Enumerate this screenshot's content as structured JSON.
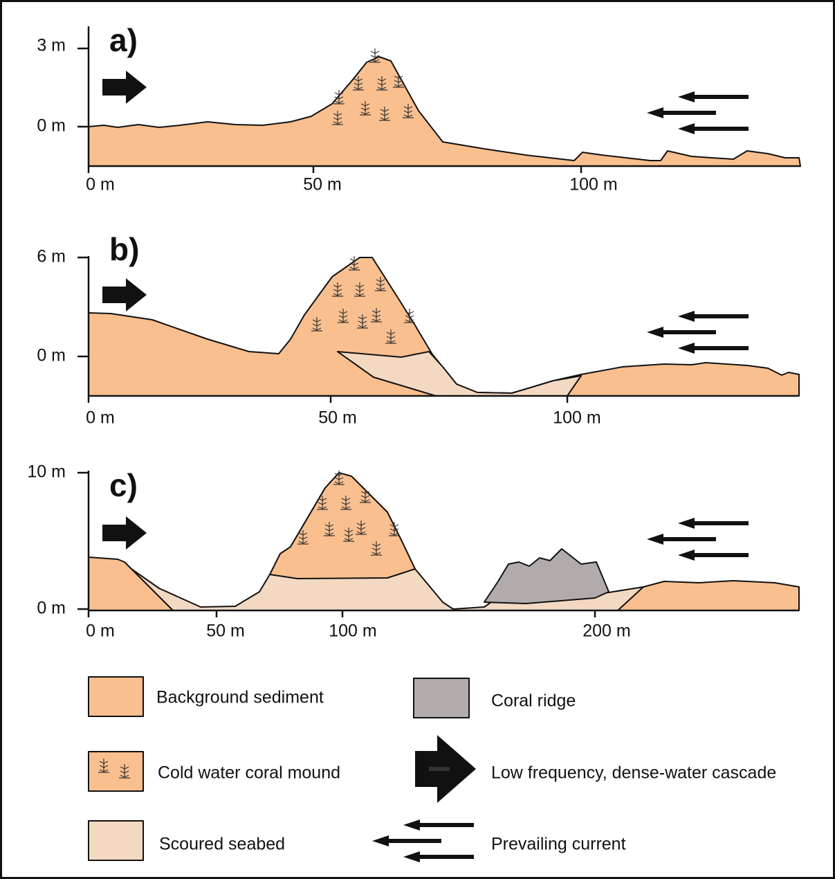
{
  "panels": [
    {
      "label": "a)",
      "y_labels": [
        "3 m",
        "0 m"
      ],
      "x_labels": [
        "0 m",
        "50 m",
        "100 m"
      ]
    },
    {
      "label": "b)",
      "y_labels": [
        "6 m",
        "0 m"
      ],
      "x_labels": [
        "0 m",
        "50 m",
        "100 m"
      ]
    },
    {
      "label": "c)",
      "y_labels": [
        "10 m",
        "0 m"
      ],
      "x_labels": [
        "0 m",
        "50 m",
        "100 m",
        "200 m"
      ]
    }
  ],
  "legend": [
    "Background sediment",
    "Cold water coral mound",
    "Scoured seabed",
    "Coral ridge",
    "Low frequency, dense-water cascade",
    "Prevailing current"
  ]
}
